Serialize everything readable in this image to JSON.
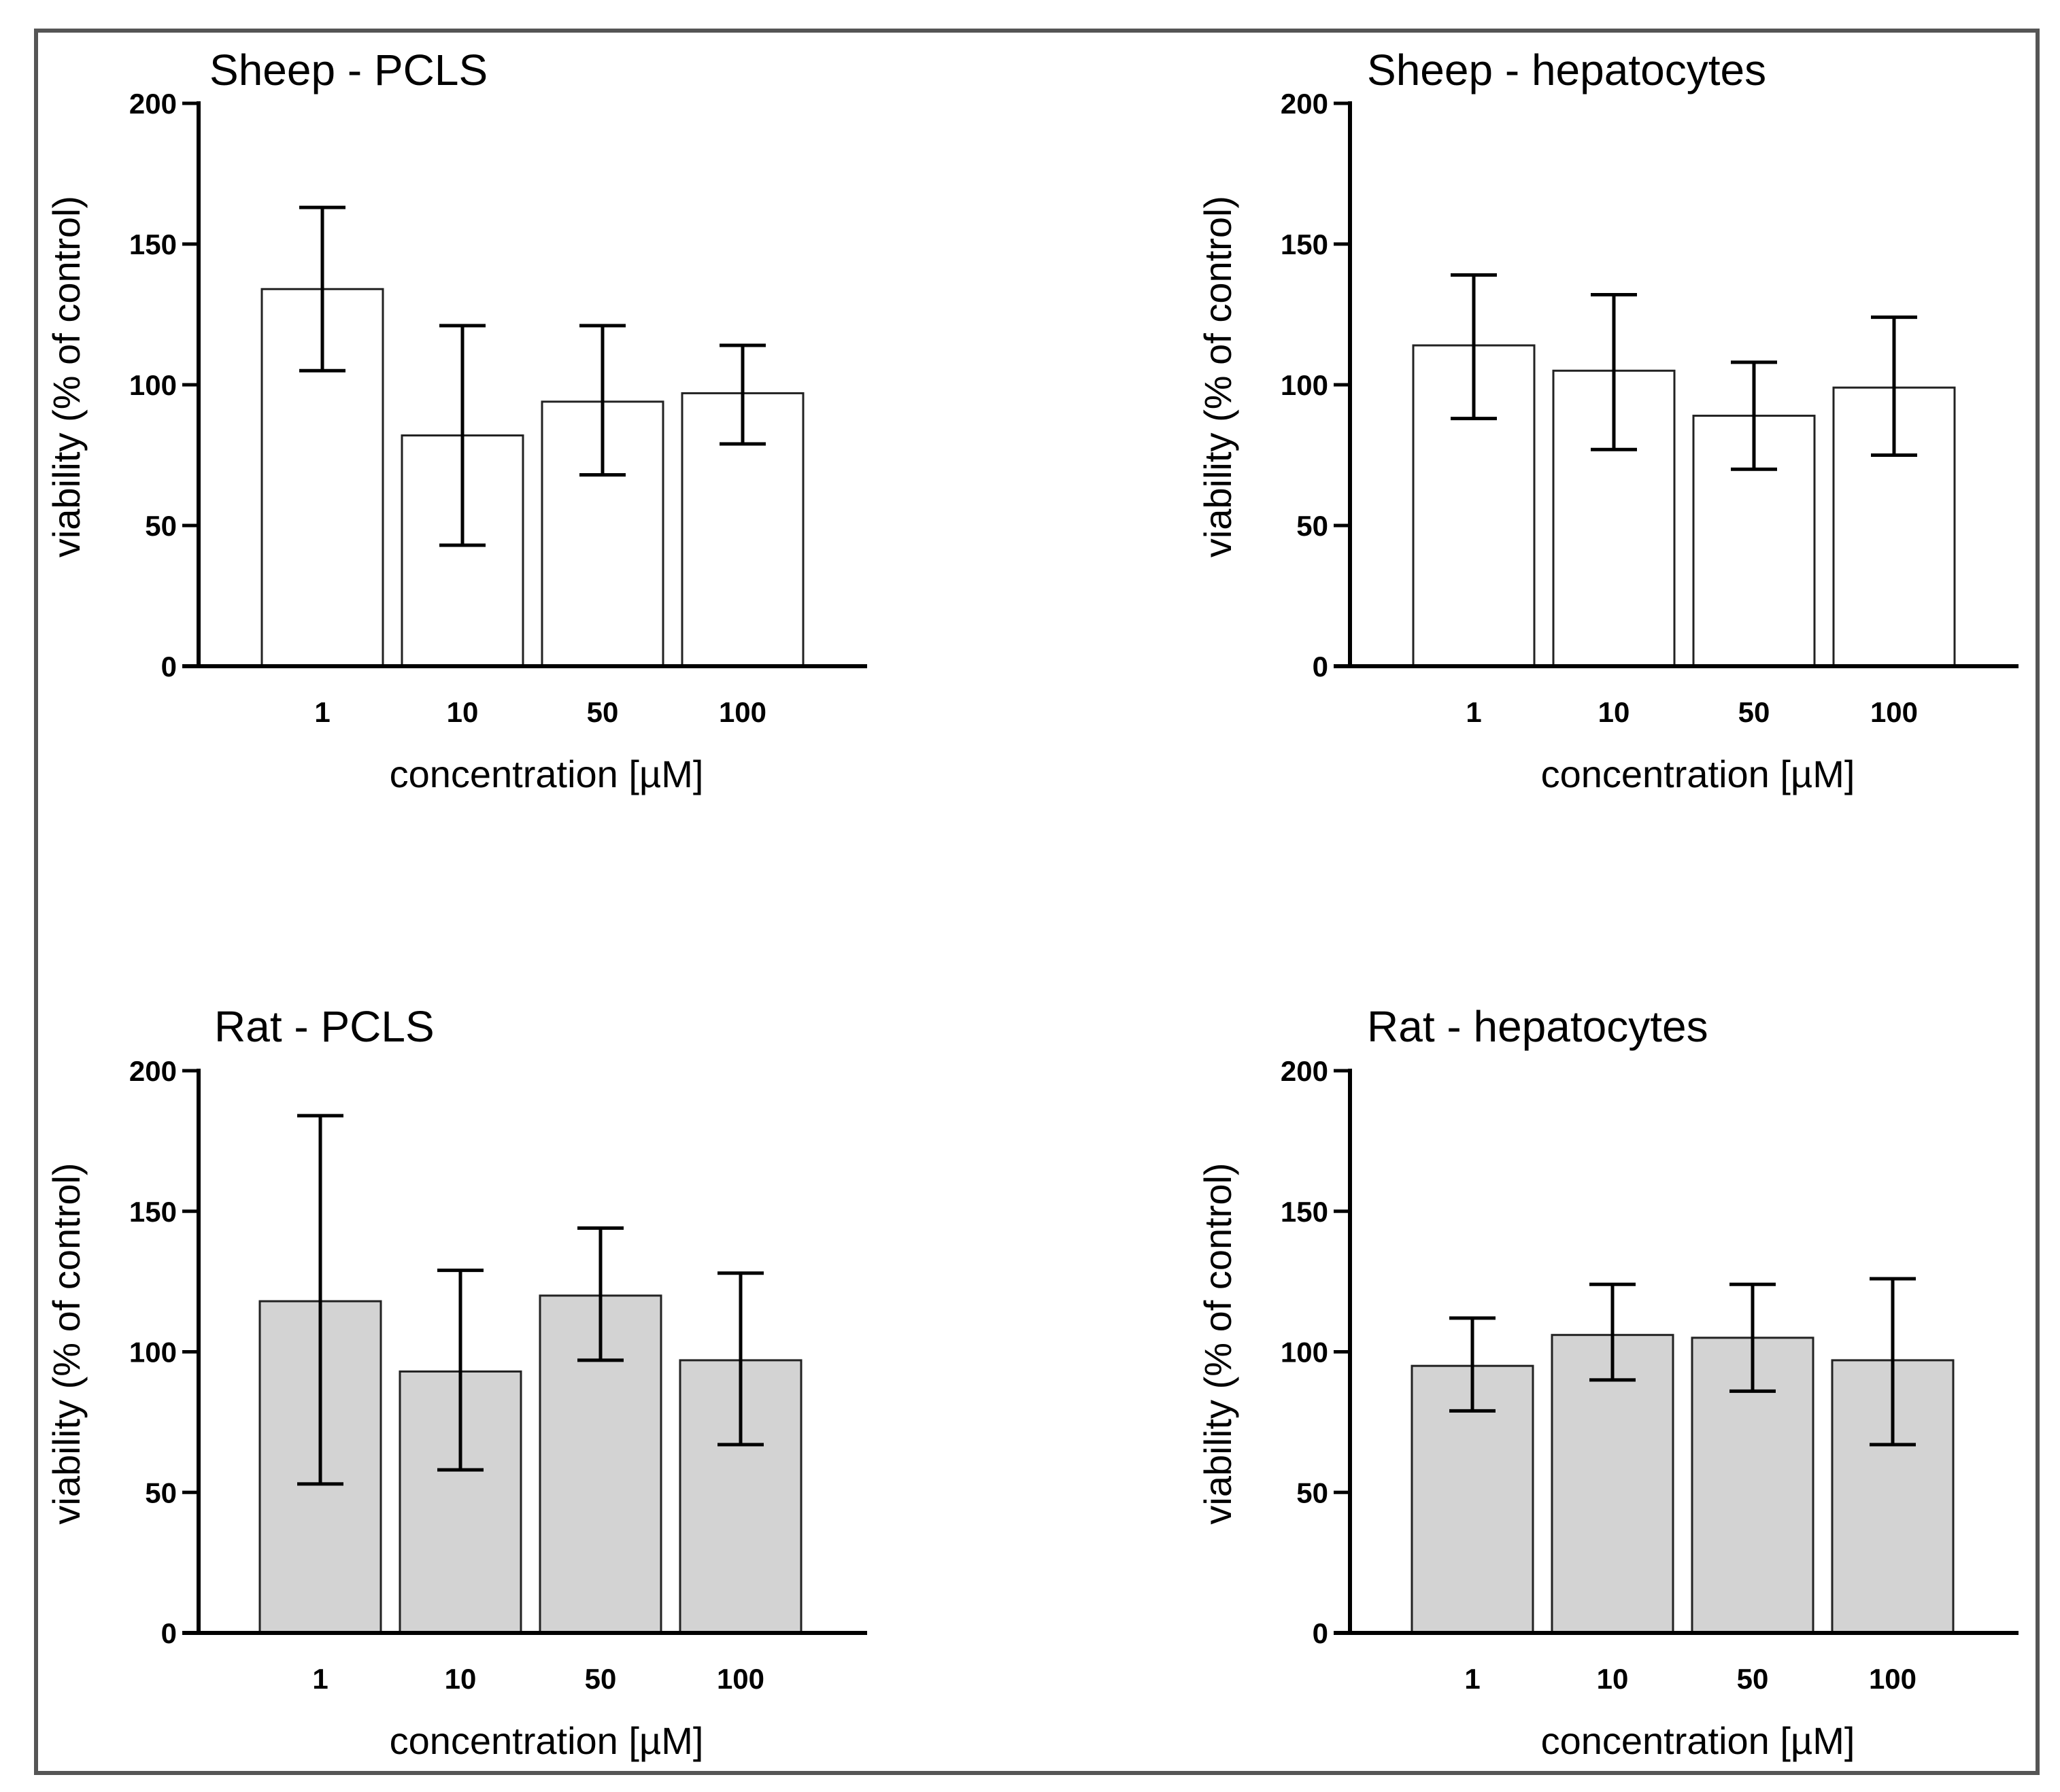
{
  "chart_data": [
    {
      "type": "bar",
      "title": "Sheep - PCLS",
      "xlabel": "concentration [µM]",
      "ylabel": "viability (% of control)",
      "categories": [
        "1",
        "10",
        "50",
        "100"
      ],
      "values": [
        134,
        82,
        94,
        97
      ],
      "error_low": [
        105,
        43,
        68,
        79
      ],
      "error_high": [
        163,
        121,
        121,
        114
      ],
      "ylim": [
        0,
        200
      ],
      "yticks": [
        "0",
        "50",
        "100",
        "150",
        "200"
      ],
      "bar_color": "#ffffff",
      "grid": false
    },
    {
      "type": "bar",
      "title": "Sheep - hepatocytes",
      "xlabel": "concentration [µM]",
      "ylabel": "viability (% of control)",
      "categories": [
        "1",
        "10",
        "50",
        "100"
      ],
      "values": [
        114,
        105,
        89,
        99
      ],
      "error_low": [
        88,
        77,
        70,
        75
      ],
      "error_high": [
        139,
        132,
        108,
        124
      ],
      "ylim": [
        0,
        200
      ],
      "yticks": [
        "0",
        "50",
        "100",
        "150",
        "200"
      ],
      "bar_color": "#ffffff",
      "grid": false
    },
    {
      "type": "bar",
      "title": "Rat - PCLS",
      "xlabel": "concentration [µM]",
      "ylabel": "viability (% of control)",
      "categories": [
        "1",
        "10",
        "50",
        "100"
      ],
      "values": [
        118,
        93,
        120,
        97
      ],
      "error_low": [
        53,
        58,
        97,
        67
      ],
      "error_high": [
        184,
        129,
        144,
        128
      ],
      "ylim": [
        0,
        200
      ],
      "yticks": [
        "0",
        "50",
        "100",
        "150",
        "200"
      ],
      "bar_color": "#d3d3d3",
      "grid": false
    },
    {
      "type": "bar",
      "title": "Rat - hepatocytes",
      "xlabel": "concentration [µM]",
      "ylabel": "viability (% of control)",
      "categories": [
        "1",
        "10",
        "50",
        "100"
      ],
      "values": [
        95,
        106,
        105,
        97
      ],
      "error_low": [
        79,
        90,
        86,
        67
      ],
      "error_high": [
        112,
        124,
        124,
        126
      ],
      "ylim": [
        0,
        200
      ],
      "yticks": [
        "0",
        "50",
        "100",
        "150",
        "200"
      ],
      "bar_color": "#d3d3d3",
      "grid": false
    }
  ]
}
